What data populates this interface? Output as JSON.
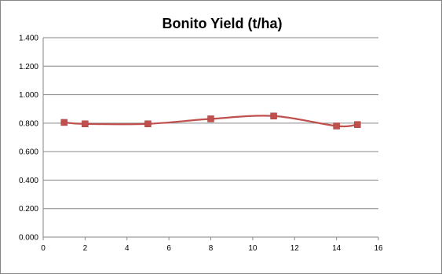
{
  "chart_data": {
    "type": "line",
    "title": "Bonito Yield (t/ha)",
    "xlabel": "",
    "ylabel": "",
    "xlim": [
      0,
      16
    ],
    "ylim": [
      0,
      1.4
    ],
    "x_ticks": [
      "0",
      "2",
      "4",
      "6",
      "8",
      "10",
      "12",
      "14",
      "16"
    ],
    "y_ticks": [
      "0.000",
      "0.200",
      "0.400",
      "0.600",
      "0.800",
      "1.000",
      "1.200",
      "1.400"
    ],
    "grid": "horizontal",
    "legend": "none",
    "smooth": true,
    "series": [
      {
        "color": "#c0504d",
        "marker": "square",
        "x": [
          1,
          2,
          5,
          8,
          11,
          14,
          15
        ],
        "y": [
          0.805,
          0.795,
          0.795,
          0.83,
          0.85,
          0.78,
          0.79
        ]
      }
    ]
  }
}
